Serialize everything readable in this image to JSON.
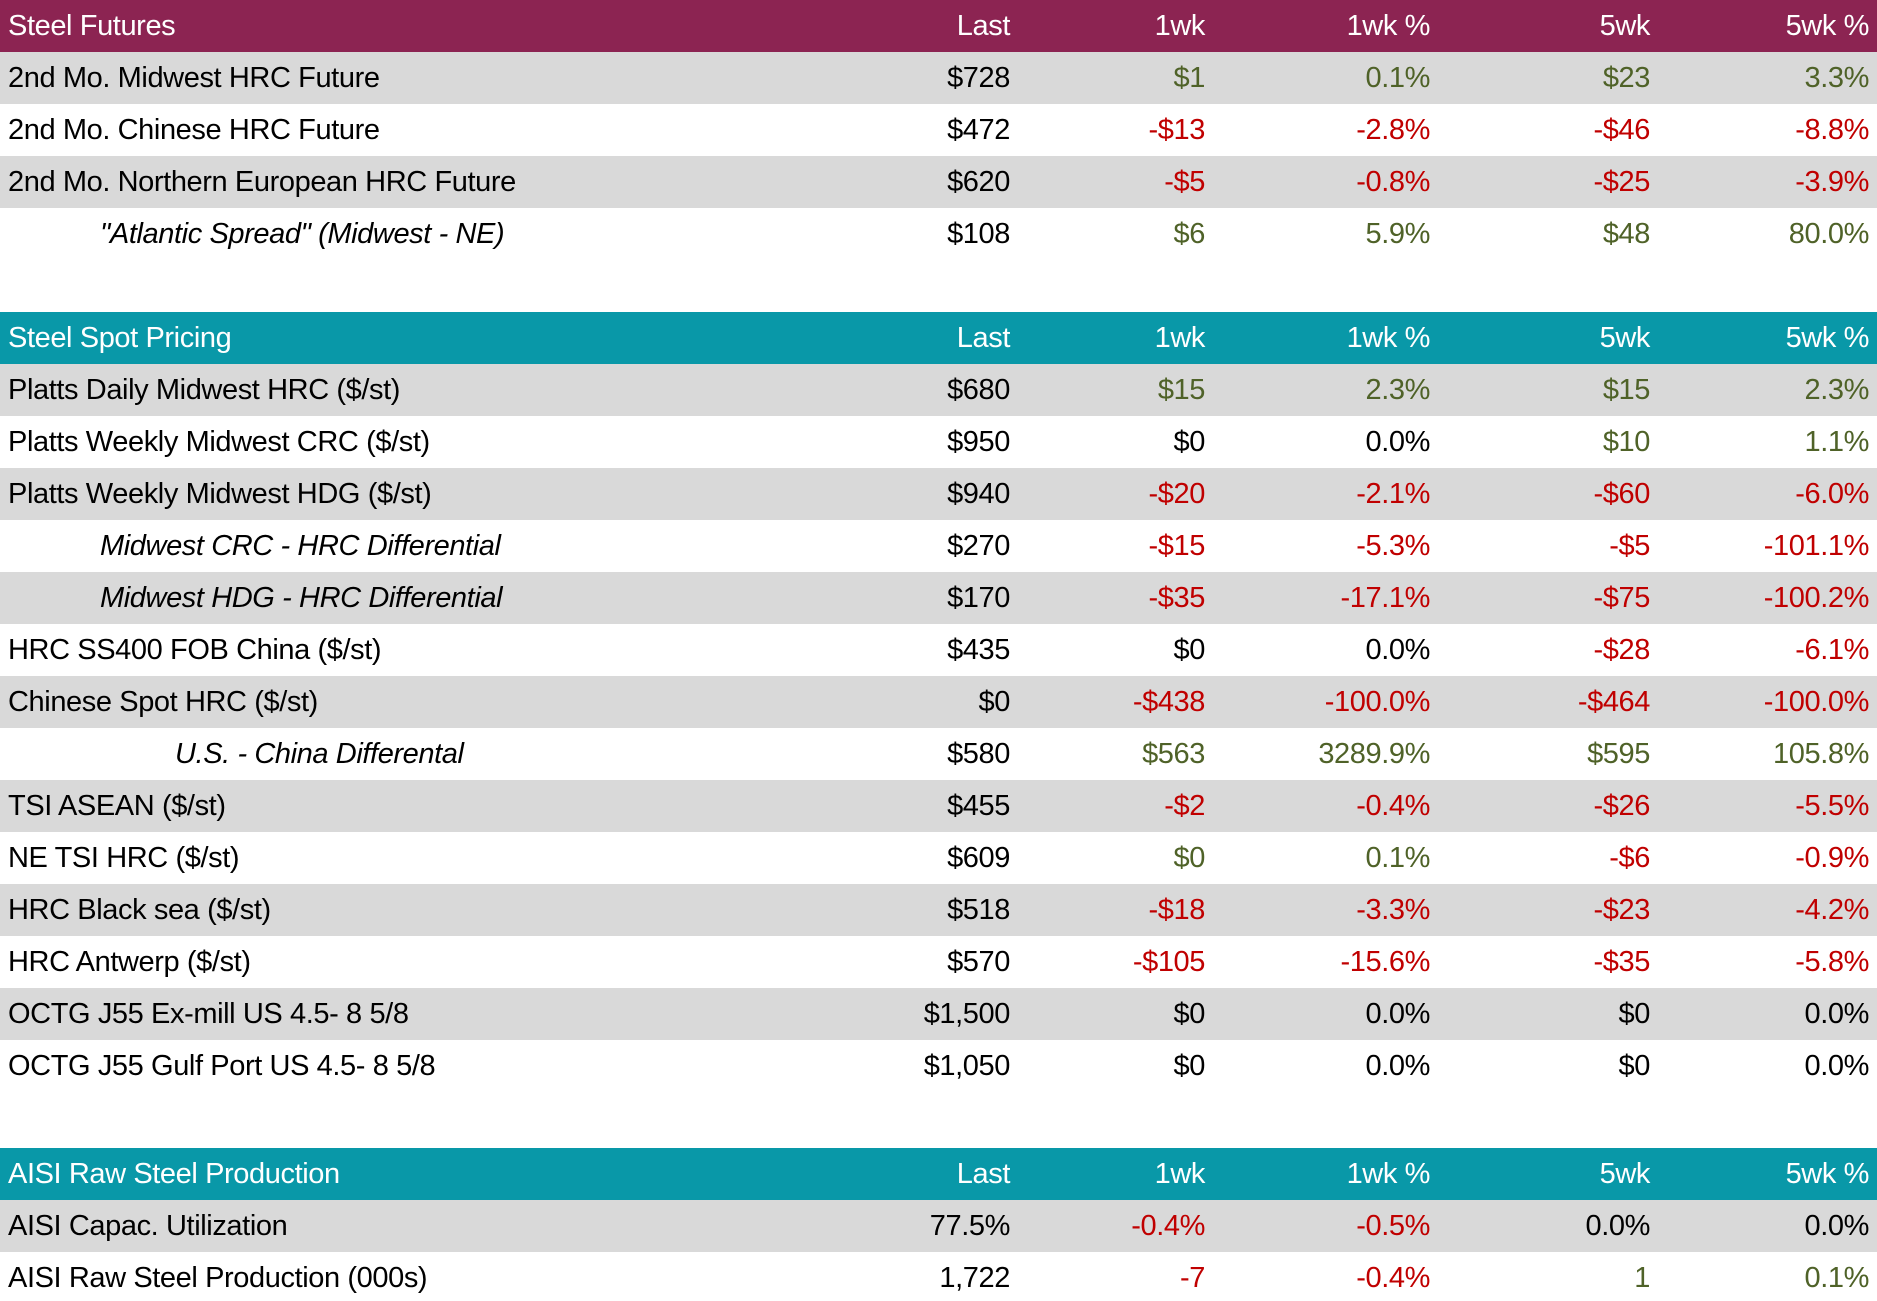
{
  "palette": {
    "futures_header_bg": "#8C2452",
    "spot_header_bg": "#0998A8",
    "aisi_header_bg": "#0998A8",
    "header_text": "#FFFFFF",
    "row_stripe": "#D9D9D9",
    "row_plain": "#FFFFFF",
    "value_colors": {
      "k": "#000000",
      "g": "#4F6228",
      "r": "#C00000"
    }
  },
  "chart_data": [
    {
      "type": "table",
      "title": "Steel Futures",
      "header_color": "#8C2452",
      "columns": [
        "Last",
        "1wk",
        "1wk %",
        "5wk",
        "5wk %"
      ],
      "rows": [
        {
          "label": "2nd Mo. Midwest HRC Future",
          "italic": false,
          "indent": 0,
          "values": [
            "$728",
            "$1",
            "0.1%",
            "$23",
            "3.3%"
          ],
          "colors": [
            "k",
            "g",
            "g",
            "g",
            "g"
          ]
        },
        {
          "label": "2nd Mo. Chinese HRC Future",
          "italic": false,
          "indent": 0,
          "values": [
            "$472",
            "-$13",
            "-2.8%",
            "-$46",
            "-8.8%"
          ],
          "colors": [
            "k",
            "r",
            "r",
            "r",
            "r"
          ]
        },
        {
          "label": "2nd Mo. Northern European HRC Future",
          "italic": false,
          "indent": 0,
          "values": [
            "$620",
            "-$5",
            "-0.8%",
            "-$25",
            "-3.9%"
          ],
          "colors": [
            "k",
            "r",
            "r",
            "r",
            "r"
          ]
        },
        {
          "label": "\"Atlantic Spread\" (Midwest - NE)",
          "italic": true,
          "indent": 1,
          "values": [
            "$108",
            "$6",
            "5.9%",
            "$48",
            "80.0%"
          ],
          "colors": [
            "k",
            "g",
            "g",
            "g",
            "g"
          ]
        }
      ]
    },
    {
      "type": "table",
      "title": "Steel Spot Pricing",
      "header_color": "#0998A8",
      "columns": [
        "Last",
        "1wk",
        "1wk %",
        "5wk",
        "5wk %"
      ],
      "rows": [
        {
          "label": "Platts Daily Midwest HRC ($/st)",
          "italic": false,
          "indent": 0,
          "values": [
            "$680",
            "$15",
            "2.3%",
            "$15",
            "2.3%"
          ],
          "colors": [
            "k",
            "g",
            "g",
            "g",
            "g"
          ]
        },
        {
          "label": "Platts Weekly Midwest CRC ($/st)",
          "italic": false,
          "indent": 0,
          "values": [
            "$950",
            "$0",
            "0.0%",
            "$10",
            "1.1%"
          ],
          "colors": [
            "k",
            "k",
            "k",
            "g",
            "g"
          ]
        },
        {
          "label": "Platts Weekly Midwest HDG ($/st)",
          "italic": false,
          "indent": 0,
          "values": [
            "$940",
            "-$20",
            "-2.1%",
            "-$60",
            "-6.0%"
          ],
          "colors": [
            "k",
            "r",
            "r",
            "r",
            "r"
          ]
        },
        {
          "label": "Midwest CRC - HRC Differential",
          "italic": true,
          "indent": 1,
          "values": [
            "$270",
            "-$15",
            "-5.3%",
            "-$5",
            "-101.1%"
          ],
          "colors": [
            "k",
            "r",
            "r",
            "r",
            "r"
          ]
        },
        {
          "label": "Midwest HDG - HRC Differential",
          "italic": true,
          "indent": 1,
          "values": [
            "$170",
            "-$35",
            "-17.1%",
            "-$75",
            "-100.2%"
          ],
          "colors": [
            "k",
            "r",
            "r",
            "r",
            "r"
          ]
        },
        {
          "label": "HRC SS400 FOB China ($/st)",
          "italic": false,
          "indent": 0,
          "values": [
            "$435",
            "$0",
            "0.0%",
            "-$28",
            "-6.1%"
          ],
          "colors": [
            "k",
            "k",
            "k",
            "r",
            "r"
          ]
        },
        {
          "label": "Chinese Spot HRC ($/st)",
          "italic": false,
          "indent": 0,
          "values": [
            "$0",
            "-$438",
            "-100.0%",
            "-$464",
            "-100.0%"
          ],
          "colors": [
            "k",
            "r",
            "r",
            "r",
            "r"
          ]
        },
        {
          "label": "U.S. - China Differental",
          "italic": true,
          "indent": 2,
          "values": [
            "$580",
            "$563",
            "3289.9%",
            "$595",
            "105.8%"
          ],
          "colors": [
            "k",
            "g",
            "g",
            "g",
            "g"
          ]
        },
        {
          "label": "TSI ASEAN ($/st)",
          "italic": false,
          "indent": 0,
          "values": [
            "$455",
            "-$2",
            "-0.4%",
            "-$26",
            "-5.5%"
          ],
          "colors": [
            "k",
            "r",
            "r",
            "r",
            "r"
          ]
        },
        {
          "label": "NE TSI HRC ($/st)",
          "italic": false,
          "indent": 0,
          "values": [
            "$609",
            "$0",
            "0.1%",
            "-$6",
            "-0.9%"
          ],
          "colors": [
            "k",
            "g",
            "g",
            "r",
            "r"
          ]
        },
        {
          "label": "HRC Black sea ($/st)",
          "italic": false,
          "indent": 0,
          "values": [
            "$518",
            "-$18",
            "-3.3%",
            "-$23",
            "-4.2%"
          ],
          "colors": [
            "k",
            "r",
            "r",
            "r",
            "r"
          ]
        },
        {
          "label": "HRC Antwerp ($/st)",
          "italic": false,
          "indent": 0,
          "values": [
            "$570",
            "-$105",
            "-15.6%",
            "-$35",
            "-5.8%"
          ],
          "colors": [
            "k",
            "r",
            "r",
            "r",
            "r"
          ]
        },
        {
          "label": "OCTG J55 Ex-mill US 4.5- 8 5/8",
          "italic": false,
          "indent": 0,
          "values": [
            "$1,500",
            "$0",
            "0.0%",
            "$0",
            "0.0%"
          ],
          "colors": [
            "k",
            "k",
            "k",
            "k",
            "k"
          ]
        },
        {
          "label": "OCTG J55 Gulf Port US 4.5- 8 5/8",
          "italic": false,
          "indent": 0,
          "values": [
            "$1,050",
            "$0",
            "0.0%",
            "$0",
            "0.0%"
          ],
          "colors": [
            "k",
            "k",
            "k",
            "k",
            "k"
          ]
        }
      ]
    },
    {
      "type": "table",
      "title": "AISI Raw Steel Production",
      "header_color": "#0998A8",
      "columns": [
        "Last",
        "1wk",
        "1wk %",
        "5wk",
        "5wk %"
      ],
      "rows": [
        {
          "label": "AISI Capac. Utilization",
          "italic": false,
          "indent": 0,
          "values": [
            "77.5%",
            "-0.4%",
            "-0.5%",
            "0.0%",
            "0.0%"
          ],
          "colors": [
            "k",
            "r",
            "r",
            "k",
            "k"
          ]
        },
        {
          "label": "AISI Raw Steel Production (000s)",
          "italic": false,
          "indent": 0,
          "values": [
            "1,722",
            "-7",
            "-0.4%",
            "1",
            "0.1%"
          ],
          "colors": [
            "k",
            "r",
            "r",
            "g",
            "g"
          ]
        }
      ]
    }
  ]
}
